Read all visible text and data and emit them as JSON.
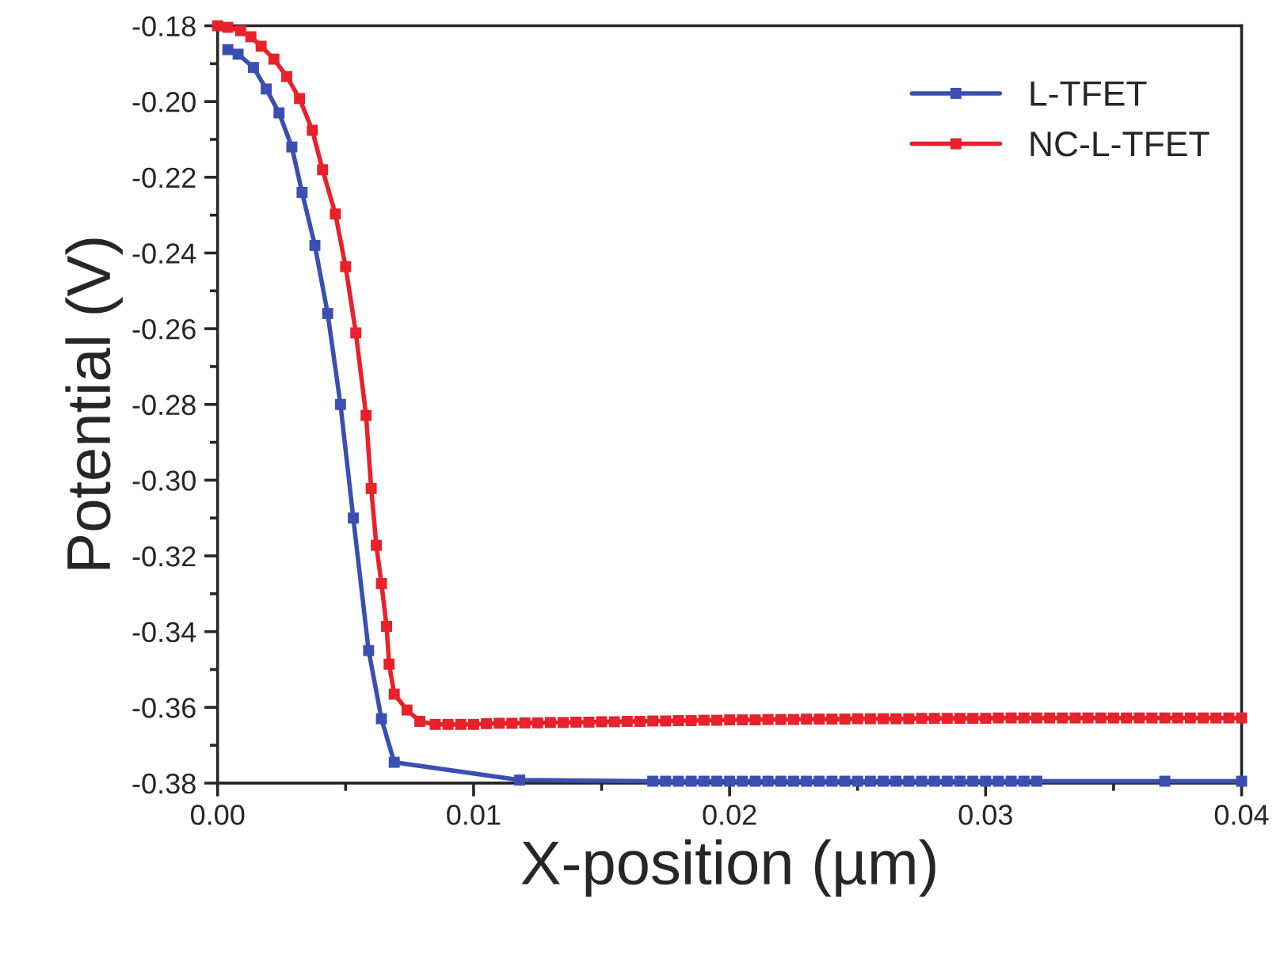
{
  "chart_data": {
    "type": "line",
    "xlabel": "X-position (µm)",
    "ylabel": "Potential (V)",
    "xlim": [
      0,
      0.04
    ],
    "ylim": [
      -0.38,
      -0.18
    ],
    "xticks": [
      {
        "value": 0,
        "label": "0.00"
      },
      {
        "value": 0.005,
        "label": null
      },
      {
        "value": 0.01,
        "label": "0.01"
      },
      {
        "value": 0.015,
        "label": null
      },
      {
        "value": 0.02,
        "label": "0.02"
      },
      {
        "value": 0.025,
        "label": null
      },
      {
        "value": 0.03,
        "label": "0.03"
      },
      {
        "value": 0.035,
        "label": null
      },
      {
        "value": 0.04,
        "label": "0.04"
      }
    ],
    "yticks": [
      {
        "value": -0.38,
        "label": "-0.38"
      },
      {
        "value": -0.37,
        "label": null
      },
      {
        "value": -0.36,
        "label": "-0.36"
      },
      {
        "value": -0.35,
        "label": null
      },
      {
        "value": -0.34,
        "label": "-0.34"
      },
      {
        "value": -0.33,
        "label": null
      },
      {
        "value": -0.32,
        "label": "-0.32"
      },
      {
        "value": -0.31,
        "label": null
      },
      {
        "value": -0.3,
        "label": "-0.30"
      },
      {
        "value": -0.29,
        "label": null
      },
      {
        "value": -0.28,
        "label": "-0.28"
      },
      {
        "value": -0.27,
        "label": null
      },
      {
        "value": -0.26,
        "label": "-0.26"
      },
      {
        "value": -0.25,
        "label": null
      },
      {
        "value": -0.24,
        "label": "-0.24"
      },
      {
        "value": -0.23,
        "label": null
      },
      {
        "value": -0.22,
        "label": "-0.22"
      },
      {
        "value": -0.21,
        "label": null
      },
      {
        "value": -0.2,
        "label": "-0.20"
      },
      {
        "value": -0.19,
        "label": null
      },
      {
        "value": -0.18,
        "label": "-0.18"
      }
    ],
    "grid": false,
    "legend": "top right",
    "marker": "square",
    "line_style": "solid",
    "series": [
      {
        "name": "L-TFET",
        "color": "#3b4fb0",
        "x": [
          0.0004,
          0.0008,
          0.0014,
          0.0019,
          0.0024,
          0.0029,
          0.0033,
          0.0038,
          0.0043,
          0.0048,
          0.0053,
          0.0059,
          0.0064,
          0.0069,
          0.0118,
          0.017,
          0.0175,
          0.018,
          0.0185,
          0.019,
          0.0195,
          0.02,
          0.0205,
          0.021,
          0.0215,
          0.022,
          0.0225,
          0.023,
          0.0235,
          0.024,
          0.0245,
          0.025,
          0.0255,
          0.026,
          0.0265,
          0.027,
          0.0275,
          0.028,
          0.0285,
          0.029,
          0.0295,
          0.03,
          0.0305,
          0.031,
          0.0315,
          0.032,
          0.037,
          0.04
        ],
        "values": [
          -0.1863,
          -0.1875,
          -0.191,
          -0.1967,
          -0.203,
          -0.212,
          -0.224,
          -0.238,
          -0.256,
          -0.28,
          -0.31,
          -0.345,
          -0.363,
          -0.3745,
          -0.3792,
          -0.3795,
          -0.3795,
          -0.3795,
          -0.3795,
          -0.3795,
          -0.3795,
          -0.3795,
          -0.3795,
          -0.3795,
          -0.3795,
          -0.3795,
          -0.3795,
          -0.3795,
          -0.3795,
          -0.3795,
          -0.3795,
          -0.3795,
          -0.3795,
          -0.3795,
          -0.3795,
          -0.3795,
          -0.3795,
          -0.3795,
          -0.3795,
          -0.3795,
          -0.3795,
          -0.3795,
          -0.3795,
          -0.3795,
          -0.3795,
          -0.3795,
          -0.3795,
          -0.3795
        ]
      },
      {
        "name": "NC-L-TFET",
        "color": "#e8212a",
        "x": [
          0,
          0.0004,
          0.0009,
          0.0013,
          0.0017,
          0.0022,
          0.0027,
          0.0032,
          0.0037,
          0.0041,
          0.0046,
          0.005,
          0.0054,
          0.0058,
          0.006,
          0.0062,
          0.0064,
          0.0066,
          0.0067,
          0.0069,
          0.0074,
          0.0079,
          0.0085,
          0.009,
          0.0095,
          0.01,
          0.0105,
          0.011,
          0.0115,
          0.012,
          0.0125,
          0.013,
          0.0135,
          0.014,
          0.0145,
          0.015,
          0.0155,
          0.016,
          0.0165,
          0.017,
          0.0175,
          0.018,
          0.0185,
          0.019,
          0.0195,
          0.02,
          0.0205,
          0.021,
          0.0215,
          0.022,
          0.0225,
          0.023,
          0.0235,
          0.024,
          0.0245,
          0.025,
          0.0255,
          0.026,
          0.0265,
          0.027,
          0.0275,
          0.028,
          0.0285,
          0.029,
          0.0295,
          0.03,
          0.0305,
          0.031,
          0.0315,
          0.032,
          0.0325,
          0.033,
          0.0335,
          0.034,
          0.0345,
          0.035,
          0.0355,
          0.036,
          0.0365,
          0.037,
          0.0375,
          0.038,
          0.0385,
          0.039,
          0.0395,
          0.04
        ],
        "values": [
          -0.18,
          -0.1804,
          -0.1813,
          -0.1829,
          -0.1854,
          -0.1888,
          -0.1934,
          -0.1992,
          -0.2076,
          -0.218,
          -0.2297,
          -0.2436,
          -0.2611,
          -0.2829,
          -0.3022,
          -0.3172,
          -0.3273,
          -0.3386,
          -0.3486,
          -0.3565,
          -0.3607,
          -0.3637,
          -0.3645,
          -0.3645,
          -0.3645,
          -0.3645,
          -0.3643,
          -0.3642,
          -0.3642,
          -0.3641,
          -0.3641,
          -0.364,
          -0.364,
          -0.3639,
          -0.3639,
          -0.3638,
          -0.3638,
          -0.3637,
          -0.3637,
          -0.3636,
          -0.3636,
          -0.3635,
          -0.3635,
          -0.3634,
          -0.3634,
          -0.3633,
          -0.3633,
          -0.3633,
          -0.3632,
          -0.3632,
          -0.3632,
          -0.3631,
          -0.3631,
          -0.3631,
          -0.3631,
          -0.363,
          -0.363,
          -0.363,
          -0.363,
          -0.363,
          -0.3629,
          -0.3629,
          -0.3629,
          -0.3629,
          -0.3629,
          -0.3629,
          -0.3628,
          -0.3628,
          -0.3628,
          -0.3628,
          -0.3628,
          -0.3628,
          -0.3628,
          -0.3628,
          -0.3628,
          -0.3628,
          -0.3628,
          -0.3628,
          -0.3628,
          -0.3628,
          -0.3628,
          -0.3628,
          -0.3628,
          -0.3628,
          -0.3628,
          -0.3628
        ]
      }
    ]
  }
}
